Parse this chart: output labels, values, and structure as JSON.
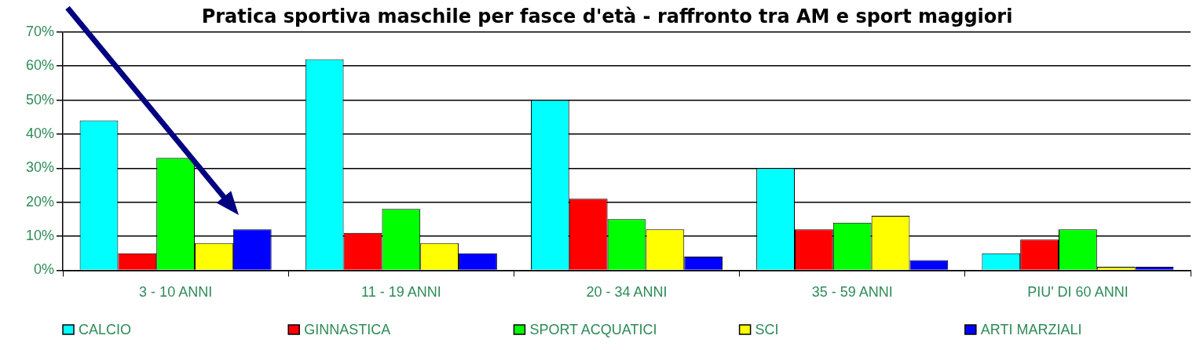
{
  "chart_data": {
    "type": "bar",
    "title": "Pratica sportiva maschile per fasce d'età - raffronto tra AM e sport maggiori",
    "categories": [
      "3 - 10 ANNI",
      "11 - 19 ANNI",
      "20 - 34 ANNI",
      "35 - 59 ANNI",
      "PIU' DI 60 ANNI"
    ],
    "series": [
      {
        "name": "CALCIO",
        "color": "#00ffff",
        "values": [
          44,
          62,
          50,
          30,
          5
        ]
      },
      {
        "name": "GINNASTICA",
        "color": "#ff0000",
        "values": [
          5,
          11,
          21,
          12,
          9
        ]
      },
      {
        "name": "SPORT ACQUATICI",
        "color": "#00ff00",
        "values": [
          33,
          18,
          15,
          14,
          12
        ]
      },
      {
        "name": "SCI",
        "color": "#ffff00",
        "values": [
          8,
          8,
          12,
          16,
          1
        ]
      },
      {
        "name": "ARTI MARZIALI",
        "color": "#0000ff",
        "values": [
          12,
          5,
          4,
          3,
          1
        ]
      }
    ],
    "ylim": [
      0,
      70
    ],
    "yticks": [
      {
        "value": 0,
        "label": "0%"
      },
      {
        "value": 10,
        "label": "10%"
      },
      {
        "value": 20,
        "label": "20%"
      },
      {
        "value": 30,
        "label": "30%"
      },
      {
        "value": 40,
        "label": "40%"
      },
      {
        "value": 50,
        "label": "50%"
      },
      {
        "value": 60,
        "label": "60%"
      },
      {
        "value": 70,
        "label": "70%"
      }
    ],
    "grid": "y",
    "legend": "bottom"
  }
}
